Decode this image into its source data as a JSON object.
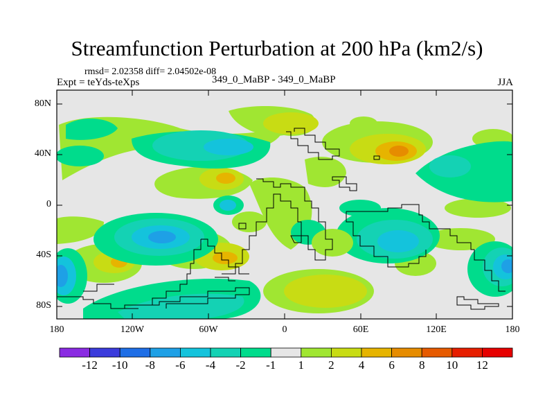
{
  "title": "Streamfunction Perturbation at 200 hPa (km2/s)",
  "stats": "rmsd= 2.02358  diff= 2.04502e-08",
  "experiment": "Expt = teYds-teXps",
  "case": "349_0_MaBP - 349_0_MaBP",
  "season": "JJA",
  "lat_ticks": [
    "80N",
    "40N",
    "0",
    "40S",
    "80S"
  ],
  "lon_ticks": [
    "180",
    "120W",
    "60W",
    "0",
    "60E",
    "120E",
    "180"
  ],
  "colorbar": {
    "labels": [
      "-12",
      "-10",
      "-8",
      "-6",
      "-4",
      "-2",
      "-1",
      "1",
      "2",
      "4",
      "6",
      "8",
      "10",
      "12"
    ],
    "colors": [
      "#8a2be2",
      "#3b3bdc",
      "#1e6ee6",
      "#1ea0e6",
      "#14c3dc",
      "#14d2b4",
      "#00dc8c",
      "#e6e6e6",
      "#a0e632",
      "#c8dc14",
      "#e6b400",
      "#e68c00",
      "#e65a00",
      "#e61e00",
      "#e60000"
    ]
  }
}
